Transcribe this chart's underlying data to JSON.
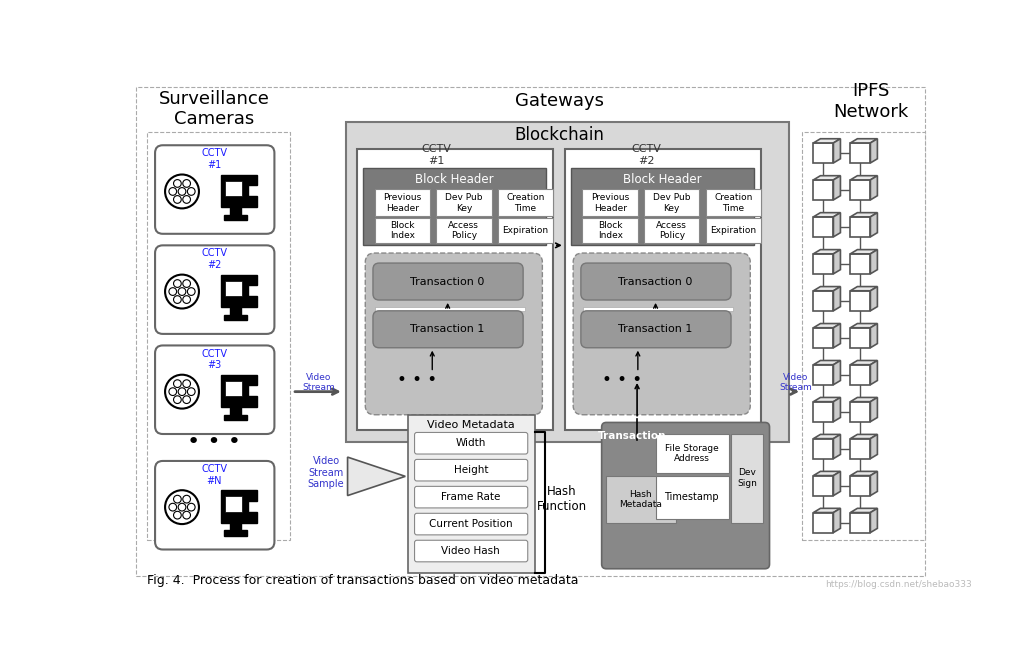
{
  "title": "Fig. 4.  Process for creation of transactions based on video metadata",
  "bg_color": "#ffffff",
  "surveillance_title": "Surveillance\nCameras",
  "gateways_title": "Gateways",
  "blockchain_title": "Blockchain",
  "ipfs_title": "IPFS\nNetwork",
  "cctv_labels": [
    "CCTV\n#1",
    "CCTV\n#2",
    "CCTV\n#3",
    "CCTV\n#N"
  ],
  "block_header_fields_row1": [
    "Previous\nHeader",
    "Dev Pub\nKey",
    "Creation\nTime"
  ],
  "block_header_fields_row2": [
    "Block\nIndex",
    "Access\nPolicy",
    "Expiration"
  ],
  "metadata_title": "Video Metadata",
  "metadata_fields": [
    "Width",
    "Height",
    "Frame Rate",
    "Current Position",
    "Video Hash"
  ],
  "transaction_box_title": "Transaction",
  "hash_function_label": "Hash\nFunction",
  "video_stream_sample_label": "Video\nStream\nSample",
  "video_stream_label": "Video\nStream",
  "url_text": "https://blog.csdn.net/shebao333"
}
